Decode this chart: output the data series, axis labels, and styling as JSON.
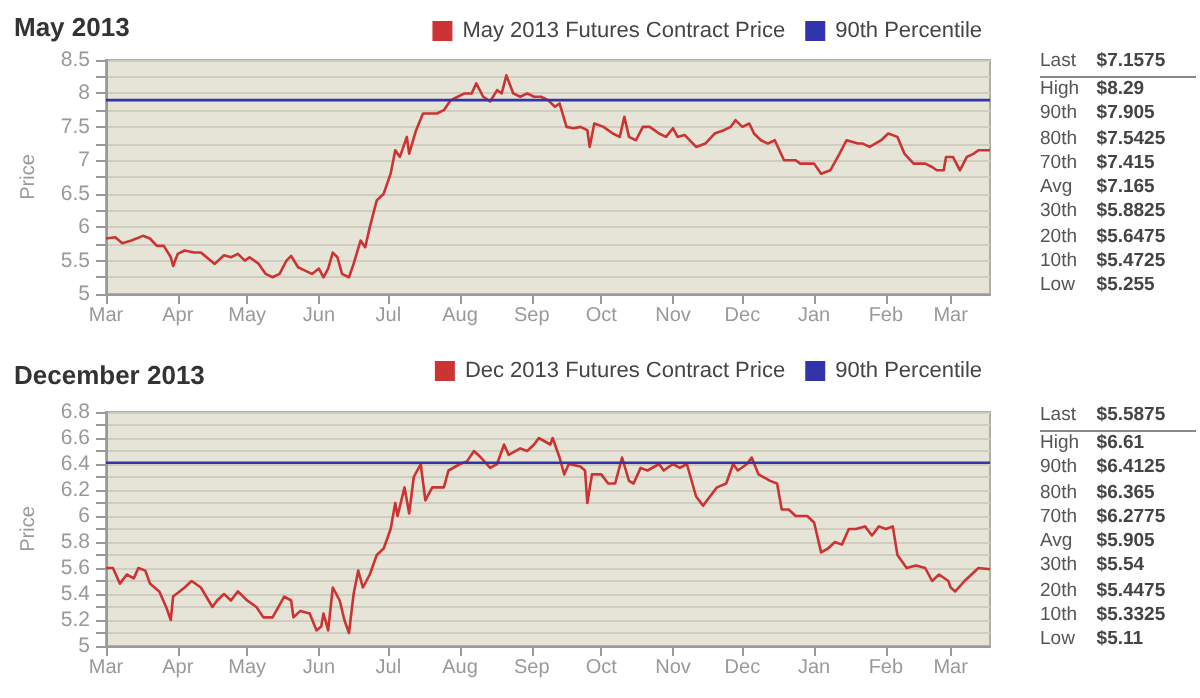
{
  "chart_data": [
    {
      "type": "line",
      "title": "May 2013",
      "ylabel": "Price",
      "grid": "y",
      "legend": "top right",
      "marker": "none",
      "xlim": [
        "2012-03-01",
        "2013-03-18"
      ],
      "xticks": [
        {
          "value": "2012-03-01",
          "label": "Mar"
        },
        {
          "value": "2012-04-01",
          "label": "Apr"
        },
        {
          "value": "2012-05-01",
          "label": "May"
        },
        {
          "value": "2012-06-01",
          "label": "Jun"
        },
        {
          "value": "2012-07-01",
          "label": "Jul"
        },
        {
          "value": "2012-08-01",
          "label": "Aug"
        },
        {
          "value": "2012-09-01",
          "label": "Sep"
        },
        {
          "value": "2012-10-01",
          "label": "Oct"
        },
        {
          "value": "2012-11-01",
          "label": "Nov"
        },
        {
          "value": "2012-12-01",
          "label": "Dec"
        },
        {
          "value": "2013-01-01",
          "label": "Jan"
        },
        {
          "value": "2013-02-01",
          "label": "Feb"
        },
        {
          "value": "2013-03-01",
          "label": "Mar"
        }
      ],
      "ylim": [
        5,
        8.5
      ],
      "yticks": [
        5,
        {
          "value": 5.25,
          "label": null
        },
        5.5,
        {
          "value": 5.75,
          "label": null
        },
        6,
        {
          "value": 6.25,
          "label": null
        },
        6.5,
        {
          "value": 6.75,
          "label": null
        },
        7,
        {
          "value": 7.25,
          "label": null
        },
        7.5,
        {
          "value": 7.75,
          "label": null
        },
        8,
        {
          "value": 8.25,
          "label": null
        },
        8.5
      ],
      "series": [
        {
          "name": "May 2013 Futures Contract Price",
          "color": "#cc3333",
          "x": [
            "2012-03-01",
            "2012-03-05",
            "2012-03-08",
            "2012-03-12",
            "2012-03-17",
            "2012-03-20",
            "2012-03-23",
            "2012-03-26",
            "2012-03-29",
            "2012-03-30",
            "2012-04-01",
            "2012-04-04",
            "2012-04-08",
            "2012-04-11",
            "2012-04-17",
            "2012-04-21",
            "2012-04-24",
            "2012-04-27",
            "2012-04-30",
            "2012-05-02",
            "2012-05-06",
            "2012-05-09",
            "2012-05-12",
            "2012-05-15",
            "2012-05-18",
            "2012-05-20",
            "2012-05-23",
            "2012-05-26",
            "2012-05-29",
            "2012-06-01",
            "2012-06-03",
            "2012-06-05",
            "2012-06-07",
            "2012-06-09",
            "2012-06-11",
            "2012-06-14",
            "2012-06-16",
            "2012-06-19",
            "2012-06-21",
            "2012-06-23",
            "2012-06-26",
            "2012-06-29",
            "2012-07-02",
            "2012-07-04",
            "2012-07-06",
            "2012-07-09",
            "2012-07-10",
            "2012-07-13",
            "2012-07-16",
            "2012-07-19",
            "2012-07-22",
            "2012-07-25",
            "2012-07-28",
            "2012-07-31",
            "2012-08-03",
            "2012-08-06",
            "2012-08-08",
            "2012-08-11",
            "2012-08-14",
            "2012-08-17",
            "2012-08-19",
            "2012-08-21",
            "2012-08-24",
            "2012-08-27",
            "2012-08-30",
            "2012-09-02",
            "2012-09-05",
            "2012-09-08",
            "2012-09-11",
            "2012-09-13",
            "2012-09-16",
            "2012-09-19",
            "2012-09-22",
            "2012-09-25",
            "2012-09-26",
            "2012-09-28",
            "2012-10-02",
            "2012-10-06",
            "2012-10-09",
            "2012-10-11",
            "2012-10-13",
            "2012-10-16",
            "2012-10-19",
            "2012-10-22",
            "2012-10-26",
            "2012-10-29",
            "2012-11-01",
            "2012-11-03",
            "2012-11-06",
            "2012-11-11",
            "2012-11-15",
            "2012-11-19",
            "2012-11-23",
            "2012-11-26",
            "2012-11-28",
            "2012-12-01",
            "2012-12-04",
            "2012-12-06",
            "2012-12-09",
            "2012-12-12",
            "2012-12-15",
            "2012-12-19",
            "2012-12-24",
            "2012-12-26",
            "2013-01-01",
            "2013-01-04",
            "2013-01-08",
            "2013-01-12",
            "2013-01-15",
            "2013-01-20",
            "2013-01-22",
            "2013-01-25",
            "2013-01-30",
            "2013-02-02",
            "2013-02-06",
            "2013-02-09",
            "2013-02-13",
            "2013-02-18",
            "2013-02-21",
            "2013-02-23",
            "2013-02-26",
            "2013-02-27",
            "2013-03-02",
            "2013-03-05",
            "2013-03-08",
            "2013-03-11",
            "2013-03-13",
            "2013-03-18"
          ],
          "values": [
            5.83,
            5.85,
            5.76,
            5.8,
            5.87,
            5.83,
            5.72,
            5.72,
            5.55,
            5.42,
            5.6,
            5.65,
            5.62,
            5.62,
            5.45,
            5.58,
            5.55,
            5.6,
            5.5,
            5.55,
            5.45,
            5.3,
            5.25,
            5.3,
            5.5,
            5.57,
            5.4,
            5.35,
            5.3,
            5.38,
            5.25,
            5.38,
            5.62,
            5.55,
            5.3,
            5.25,
            5.45,
            5.8,
            5.7,
            6.0,
            6.4,
            6.5,
            6.8,
            7.15,
            7.05,
            7.35,
            7.1,
            7.45,
            7.7,
            7.7,
            7.7,
            7.75,
            7.9,
            7.95,
            8.0,
            8.0,
            8.15,
            7.95,
            7.88,
            8.05,
            8.0,
            8.27,
            8.0,
            7.95,
            8.0,
            7.95,
            7.95,
            7.9,
            7.8,
            7.85,
            7.5,
            7.48,
            7.5,
            7.45,
            7.2,
            7.55,
            7.5,
            7.4,
            7.35,
            7.65,
            7.35,
            7.3,
            7.5,
            7.5,
            7.4,
            7.35,
            7.48,
            7.35,
            7.38,
            7.2,
            7.25,
            7.4,
            7.45,
            7.5,
            7.6,
            7.5,
            7.55,
            7.4,
            7.3,
            7.25,
            7.3,
            7.0,
            7.0,
            6.95,
            6.95,
            6.8,
            6.85,
            7.1,
            7.3,
            7.25,
            7.25,
            7.2,
            7.3,
            7.4,
            7.35,
            7.1,
            6.95,
            6.95,
            6.9,
            6.85,
            6.85,
            7.05,
            7.05,
            6.85,
            7.05,
            7.1,
            7.15,
            7.15
          ]
        },
        {
          "name": "90th Percentile",
          "color": "#3333aa",
          "x": [
            "2012-03-01",
            "2013-03-18"
          ],
          "values": [
            7.9,
            7.9
          ]
        }
      ]
    },
    {
      "type": "other",
      "annotations": [
        "Last",
        "$7.1575",
        "High",
        "$8.29",
        "90th",
        "$7.905",
        "80th",
        "$7.5425",
        "70th",
        "$7.415",
        "Avg",
        "$7.165",
        "30th",
        "$5.8825",
        "20th",
        "$5.6475",
        "10th",
        "$5.4725",
        "Low",
        "$5.255"
      ]
    },
    {
      "type": "line",
      "title": "December 2013",
      "ylabel": "Price",
      "grid": "y",
      "legend": "top right",
      "marker": "none",
      "xlim": [
        "2012-03-01",
        "2013-03-18"
      ],
      "xticks": [
        {
          "value": "2012-03-01",
          "label": "Mar"
        },
        {
          "value": "2012-04-01",
          "label": "Apr"
        },
        {
          "value": "2012-05-01",
          "label": "May"
        },
        {
          "value": "2012-06-01",
          "label": "Jun"
        },
        {
          "value": "2012-07-01",
          "label": "Jul"
        },
        {
          "value": "2012-08-01",
          "label": "Aug"
        },
        {
          "value": "2012-09-01",
          "label": "Sep"
        },
        {
          "value": "2012-10-01",
          "label": "Oct"
        },
        {
          "value": "2012-11-01",
          "label": "Nov"
        },
        {
          "value": "2012-12-01",
          "label": "Dec"
        },
        {
          "value": "2013-01-01",
          "label": "Jan"
        },
        {
          "value": "2013-02-01",
          "label": "Feb"
        },
        {
          "value": "2013-03-01",
          "label": "Mar"
        }
      ],
      "ylim": [
        5,
        6.8
      ],
      "yticks": [
        5,
        {
          "value": 5.1,
          "label": null
        },
        5.2,
        {
          "value": 5.3,
          "label": null
        },
        5.4,
        {
          "value": 5.5,
          "label": null
        },
        5.6,
        {
          "value": 5.7,
          "label": null
        },
        5.8,
        {
          "value": 5.9,
          "label": null
        },
        6,
        {
          "value": 6.1,
          "label": null
        },
        6.2,
        {
          "value": 6.3,
          "label": null
        },
        6.4,
        {
          "value": 6.5,
          "label": null
        },
        6.6,
        {
          "value": 6.7,
          "label": null
        },
        6.8
      ],
      "series": [
        {
          "name": "Dec 2013 Futures Contract Price",
          "color": "#cc3333",
          "x": [
            "2012-03-01",
            "2012-03-04",
            "2012-03-07",
            "2012-03-10",
            "2012-03-13",
            "2012-03-15",
            "2012-03-18",
            "2012-03-20",
            "2012-03-24",
            "2012-03-27",
            "2012-03-29",
            "2012-03-30",
            "2012-04-04",
            "2012-04-07",
            "2012-04-11",
            "2012-04-16",
            "2012-04-18",
            "2012-04-21",
            "2012-04-24",
            "2012-04-27",
            "2012-05-01",
            "2012-05-05",
            "2012-05-08",
            "2012-05-12",
            "2012-05-17",
            "2012-05-20",
            "2012-05-21",
            "2012-05-24",
            "2012-05-28",
            "2012-05-31",
            "2012-06-02",
            "2012-06-03",
            "2012-06-05",
            "2012-06-07",
            "2012-06-10",
            "2012-06-12",
            "2012-06-14",
            "2012-06-16",
            "2012-06-18",
            "2012-06-20",
            "2012-06-23",
            "2012-06-26",
            "2012-06-29",
            "2012-07-02",
            "2012-07-04",
            "2012-07-05",
            "2012-07-08",
            "2012-07-10",
            "2012-07-12",
            "2012-07-15",
            "2012-07-17",
            "2012-07-20",
            "2012-07-25",
            "2012-07-27",
            "2012-08-01",
            "2012-08-04",
            "2012-08-07",
            "2012-08-10",
            "2012-08-14",
            "2012-08-17",
            "2012-08-20",
            "2012-08-22",
            "2012-08-27",
            "2012-08-30",
            "2012-09-02",
            "2012-09-04",
            "2012-09-09",
            "2012-09-10",
            "2012-09-13",
            "2012-09-15",
            "2012-09-17",
            "2012-09-22",
            "2012-09-24",
            "2012-09-25",
            "2012-09-27",
            "2012-10-01",
            "2012-10-04",
            "2012-10-07",
            "2012-10-10",
            "2012-10-13",
            "2012-10-15",
            "2012-10-18",
            "2012-10-21",
            "2012-10-26",
            "2012-10-28",
            "2012-11-01",
            "2012-11-04",
            "2012-11-07",
            "2012-11-11",
            "2012-11-14",
            "2012-11-17",
            "2012-11-20",
            "2012-11-24",
            "2012-11-27",
            "2012-11-29",
            "2012-12-03",
            "2012-12-05",
            "2012-12-08",
            "2012-12-13",
            "2012-12-16",
            "2012-12-18",
            "2012-12-21",
            "2012-12-24",
            "2012-12-29",
            "2013-01-01",
            "2013-01-04",
            "2013-01-07",
            "2013-01-10",
            "2013-01-13",
            "2013-01-16",
            "2013-01-19",
            "2013-01-23",
            "2013-01-26",
            "2013-01-29",
            "2013-02-01",
            "2013-02-04",
            "2013-02-06",
            "2013-02-10",
            "2013-02-14",
            "2013-02-18",
            "2013-02-21",
            "2013-02-24",
            "2013-02-28",
            "2013-03-01",
            "2013-03-03",
            "2013-03-07",
            "2013-03-10",
            "2013-03-13",
            "2013-03-18"
          ],
          "values": [
            5.6,
            5.6,
            5.48,
            5.55,
            5.52,
            5.6,
            5.58,
            5.48,
            5.42,
            5.3,
            5.2,
            5.38,
            5.45,
            5.5,
            5.45,
            5.3,
            5.35,
            5.4,
            5.35,
            5.42,
            5.35,
            5.3,
            5.22,
            5.22,
            5.38,
            5.35,
            5.22,
            5.27,
            5.25,
            5.12,
            5.15,
            5.25,
            5.12,
            5.45,
            5.35,
            5.2,
            5.1,
            5.4,
            5.58,
            5.45,
            5.55,
            5.7,
            5.75,
            5.9,
            6.1,
            6.0,
            6.22,
            6.02,
            6.3,
            6.4,
            6.12,
            6.22,
            6.22,
            6.35,
            6.4,
            6.42,
            6.5,
            6.45,
            6.37,
            6.4,
            6.55,
            6.47,
            6.52,
            6.5,
            6.55,
            6.6,
            6.55,
            6.6,
            6.45,
            6.32,
            6.4,
            6.38,
            6.35,
            6.1,
            6.32,
            6.32,
            6.25,
            6.25,
            6.45,
            6.27,
            6.25,
            6.37,
            6.35,
            6.4,
            6.35,
            6.4,
            6.37,
            6.4,
            6.15,
            6.08,
            6.15,
            6.22,
            6.25,
            6.4,
            6.35,
            6.4,
            6.45,
            6.32,
            6.27,
            6.25,
            6.05,
            6.05,
            6.0,
            6.0,
            5.95,
            5.72,
            5.75,
            5.8,
            5.78,
            5.9,
            5.9,
            5.92,
            5.85,
            5.92,
            5.9,
            5.92,
            5.7,
            5.6,
            5.62,
            5.6,
            5.5,
            5.55,
            5.5,
            5.45,
            5.42,
            5.5,
            5.55,
            5.6,
            5.59
          ]
        },
        {
          "name": "90th Percentile",
          "color": "#3333aa",
          "x": [
            "2012-03-01",
            "2013-03-18"
          ],
          "values": [
            6.41,
            6.41
          ]
        }
      ]
    },
    {
      "type": "other",
      "annotations": [
        "Last",
        "$5.5875",
        "High",
        "$6.61",
        "90th",
        "$6.4125",
        "80th",
        "$6.365",
        "70th",
        "$6.2775",
        "Avg",
        "$5.905",
        "30th",
        "$5.54",
        "20th",
        "$5.4475",
        "10th",
        "$5.3325",
        "Low",
        "$5.11"
      ]
    }
  ]
}
